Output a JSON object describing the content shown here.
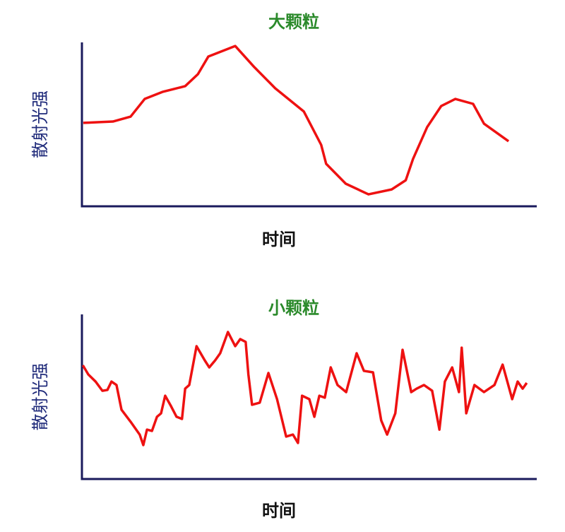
{
  "chart_data": [
    {
      "type": "line",
      "title": "大颗粒",
      "xlabel": "时间",
      "ylabel": "散射光强",
      "color": "#ee1111",
      "xlim": [
        0,
        100
      ],
      "ylim": [
        0,
        100
      ],
      "x": [
        0.3,
        6.8,
        10.7,
        13.8,
        17.7,
        22.7,
        25.5,
        27.8,
        33.7,
        37.9,
        42.5,
        48.8,
        52.6,
        53.7,
        58.0,
        63.0,
        68.1,
        71.2,
        72.8,
        75.9,
        79.0,
        82.1,
        86.0,
        88.4,
        93.8
      ],
      "values": [
        50.9,
        51.7,
        54.7,
        65.5,
        69.8,
        73.3,
        80.6,
        91.4,
        97.8,
        84.9,
        72.0,
        57.8,
        37.5,
        25.9,
        13.8,
        7.3,
        10.3,
        15.9,
        28.9,
        48.3,
        61.2,
        65.5,
        62.5,
        50.4,
        39.7
      ]
    },
    {
      "type": "line",
      "title": "小颗粒",
      "xlabel": "时间",
      "ylabel": "散射光强",
      "color": "#ee1111",
      "xlim": [
        0,
        100
      ],
      "ylim": [
        0,
        100
      ],
      "x": [
        0.2,
        1.4,
        3.0,
        4.5,
        5.6,
        6.5,
        7.6,
        8.7,
        10.7,
        12.7,
        13.5,
        14.3,
        15.4,
        16.5,
        17.4,
        18.3,
        19.6,
        20.8,
        22.0,
        22.7,
        23.6,
        25.2,
        27.0,
        28.0,
        29.3,
        30.4,
        32.1,
        33.7,
        34.8,
        36.0,
        36.6,
        37.4,
        39.1,
        41.0,
        42.9,
        44.9,
        46.4,
        47.5,
        48.4,
        50.0,
        51.1,
        52.2,
        53.4,
        54.7,
        56.2,
        58.1,
        60.4,
        62.0,
        64.0,
        65.8,
        67.1,
        68.9,
        70.5,
        72.4,
        73.6,
        75.2,
        77.0,
        78.6,
        79.8,
        81.4,
        82.9,
        83.5,
        84.5,
        86.3,
        88.4,
        90.7,
        92.5,
        94.6,
        95.8,
        96.9,
        97.8
      ],
      "values": [
        69.1,
        63.5,
        59.2,
        53.6,
        54.1,
        59.2,
        57.1,
        42.1,
        34.8,
        27.0,
        20.6,
        30.0,
        29.2,
        37.8,
        39.9,
        50.6,
        44.2,
        37.8,
        36.5,
        54.9,
        57.1,
        80.7,
        72.1,
        67.8,
        72.1,
        76.4,
        89.3,
        80.7,
        85.0,
        83.3,
        63.5,
        45.1,
        46.4,
        64.4,
        48.5,
        25.8,
        27.0,
        21.9,
        50.6,
        48.5,
        37.8,
        50.6,
        49.4,
        67.8,
        57.1,
        52.8,
        76.4,
        65.7,
        64.8,
        35.6,
        27.0,
        39.9,
        78.5,
        52.8,
        54.9,
        57.1,
        53.6,
        30.0,
        59.2,
        67.8,
        52.8,
        79.8,
        39.9,
        57.1,
        52.8,
        57.1,
        69.5,
        48.5,
        59.2,
        54.9,
        58.4
      ]
    }
  ]
}
